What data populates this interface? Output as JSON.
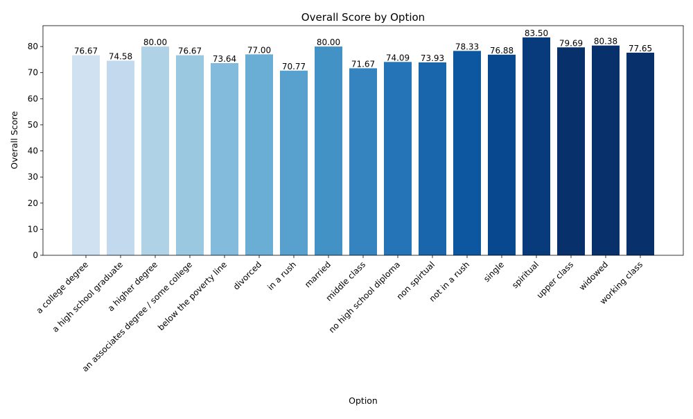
{
  "chart_data": {
    "type": "bar",
    "title": "Overall Score by Option",
    "xlabel": "Option",
    "ylabel": "Overall Score",
    "ylim": [
      0,
      88
    ],
    "yticks": [
      0,
      10,
      20,
      30,
      40,
      50,
      60,
      70,
      80
    ],
    "grid": false,
    "legend": "none",
    "colormap": "Blues",
    "categories": [
      "a college degree",
      "a high school graduate",
      "a higher degree",
      "an associates degree / some college",
      "below the poverty line",
      "divorced",
      "in a rush",
      "married",
      "middle class",
      "no high school diploma",
      "non spirtual",
      "not in a rush",
      "single",
      "spiritual",
      "upper class",
      "widowed",
      "working class"
    ],
    "values": [
      76.67,
      74.58,
      80.0,
      76.67,
      73.64,
      77.0,
      70.77,
      80.0,
      71.67,
      74.09,
      73.93,
      78.33,
      76.88,
      83.5,
      79.69,
      80.38,
      77.65
    ],
    "value_labels": [
      "76.67",
      "74.58",
      "80.00",
      "76.67",
      "73.64",
      "77.00",
      "70.77",
      "80.00",
      "71.67",
      "74.09",
      "73.93",
      "78.33",
      "76.88",
      "83.50",
      "79.69",
      "80.38",
      "77.65"
    ],
    "colors": [
      "#d0e1f2",
      "#c2d9ee",
      "#b0d2e7",
      "#9ac8e0",
      "#82bbdb",
      "#6aaed6",
      "#58a1cf",
      "#4292c6",
      "#3584c0",
      "#2474b7",
      "#1966ad",
      "#0d57a1",
      "#08488e",
      "#083b7c",
      "#08306b",
      "#08306b",
      "#08306b"
    ]
  }
}
